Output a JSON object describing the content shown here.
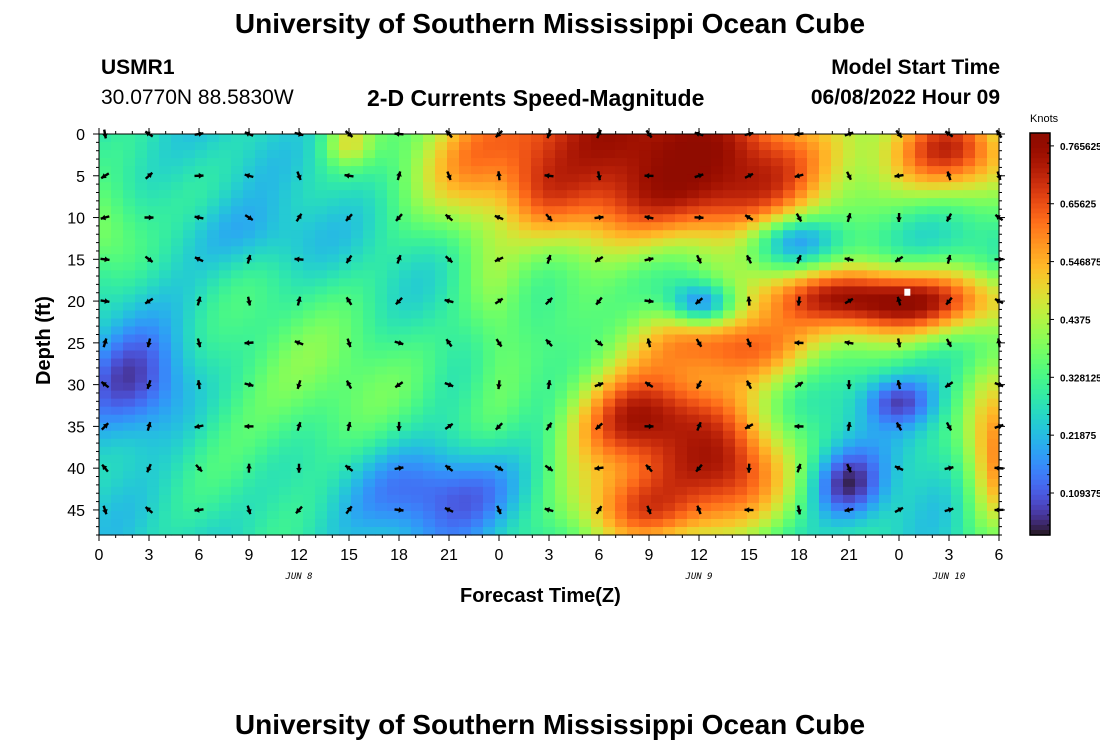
{
  "page": {
    "title": "University of Southern Mississippi Ocean Cube",
    "title_repeat": "University of Southern Mississippi Ocean Cube",
    "station_id": "USMR1",
    "station_coords": "30.0770N  88.5830W",
    "subtitle": "2-D Currents Speed-Magnitude",
    "model_start_label": "Model Start Time",
    "model_start_value": "06/08/2022 Hour 09"
  },
  "chart_data": {
    "type": "heatmap",
    "title": "2-D Currents Speed-Magnitude",
    "xlabel": "Forecast Time(Z)",
    "ylabel": "Depth (ft)",
    "x_tick_labels": [
      "0",
      "3",
      "6",
      "9",
      "12",
      "15",
      "18",
      "21",
      "0",
      "3",
      "6",
      "9",
      "12",
      "15",
      "18",
      "21",
      "0",
      "3",
      "6"
    ],
    "date_labels": [
      {
        "text": "JUN 8",
        "at_hour": 12
      },
      {
        "text": "JUN 9",
        "at_hour": 36
      },
      {
        "text": "JUN 10",
        "at_hour": 51
      }
    ],
    "x_hours_since_start": [
      0,
      54
    ],
    "y_tick_labels": [
      "0",
      "5",
      "10",
      "15",
      "20",
      "25",
      "30",
      "35",
      "40",
      "45"
    ],
    "y_ticks": [
      0,
      5,
      10,
      15,
      20,
      25,
      30,
      35,
      40,
      45
    ],
    "ylim": [
      0,
      48
    ],
    "y_inverted": true,
    "colorbar": {
      "label": "Knots",
      "tick_labels": [
        "0.765625",
        "0.65625",
        "0.546875",
        "0.4375",
        "0.328125",
        "0.21875",
        "0.109375"
      ],
      "ticks": [
        0.765625,
        0.65625,
        0.546875,
        0.4375,
        0.328125,
        0.21875,
        0.109375
      ],
      "range": [
        0.03,
        0.79
      ],
      "colormap": "turbo"
    },
    "arrow_depths": [
      0,
      5,
      10,
      15,
      20,
      25,
      30,
      35,
      40,
      45
    ],
    "arrow_hours": [
      0,
      3,
      6,
      9,
      12,
      15,
      18,
      21,
      24,
      27,
      30,
      33,
      36,
      39,
      42,
      45,
      48,
      51,
      54
    ],
    "speed_blobs": [
      {
        "t": 32,
        "d": 3,
        "v": 0.8,
        "st": 7,
        "sd": 7
      },
      {
        "t": 37,
        "d": 4,
        "v": 0.75,
        "st": 5,
        "sd": 5
      },
      {
        "t": 26,
        "d": 3,
        "v": 0.72,
        "st": 3.5,
        "sd": 5
      },
      {
        "t": 51,
        "d": 2,
        "v": 0.68,
        "st": 3,
        "sd": 4
      },
      {
        "t": 47,
        "d": 20,
        "v": 0.78,
        "st": 6,
        "sd": 3
      },
      {
        "t": 38,
        "d": 25,
        "v": 0.66,
        "st": 4,
        "sd": 4
      },
      {
        "t": 33,
        "d": 35,
        "v": 0.78,
        "st": 3.5,
        "sd": 5
      },
      {
        "t": 33,
        "d": 44,
        "v": 0.68,
        "st": 3.5,
        "sd": 4
      },
      {
        "t": 37,
        "d": 40,
        "v": 0.72,
        "st": 3,
        "sd": 5
      },
      {
        "t": 54,
        "d": 38,
        "v": 0.6,
        "st": 1.5,
        "sd": 7
      },
      {
        "t": 15,
        "d": 1,
        "v": 0.45,
        "st": 1,
        "sd": 2
      },
      {
        "t": 12,
        "d": 30,
        "v": 0.38,
        "st": 6,
        "sd": 8
      },
      {
        "t": 24,
        "d": 22,
        "v": 0.4,
        "st": 1.5,
        "sd": 10
      },
      {
        "t": 0,
        "d": 12,
        "v": 0.42,
        "st": 2,
        "sd": 4
      }
    ],
    "low_blobs": [
      {
        "t": 2,
        "d": 30,
        "v": 0.07,
        "st": 2.5,
        "sd": 5
      },
      {
        "t": 21,
        "d": 43,
        "v": 0.1,
        "st": 3.5,
        "sd": 4
      },
      {
        "t": 45,
        "d": 42,
        "v": 0.07,
        "st": 1.5,
        "sd": 3
      },
      {
        "t": 48,
        "d": 32,
        "v": 0.1,
        "st": 1.5,
        "sd": 2
      },
      {
        "t": 9,
        "d": 12,
        "v": 0.2,
        "st": 3,
        "sd": 3
      },
      {
        "t": 36,
        "d": 20,
        "v": 0.18,
        "st": 1.5,
        "sd": 2
      },
      {
        "t": 42,
        "d": 13,
        "v": 0.2,
        "st": 2,
        "sd": 2
      }
    ],
    "base_speed": 0.26,
    "max_marker": {
      "hour": 48.5,
      "depth": 19
    }
  },
  "colors": {
    "arrow": "#000000",
    "marker": "#ffffff"
  }
}
